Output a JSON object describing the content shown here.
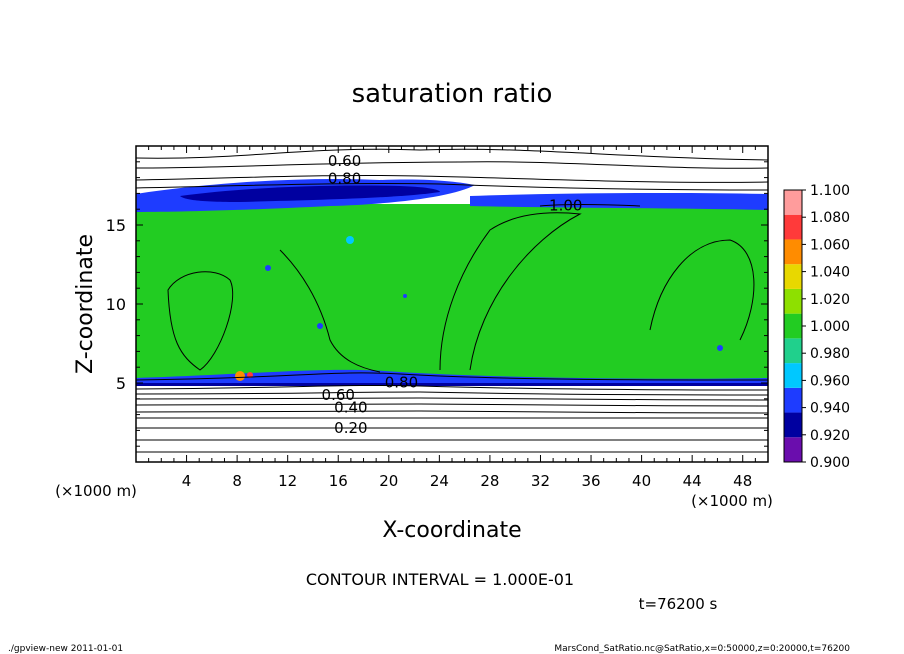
{
  "chart_data": {
    "type": "heatmap",
    "title": "saturation ratio",
    "xlabel": "X-coordinate",
    "ylabel": "Z-coordinate",
    "x_unit": "(×1000 m)",
    "y_unit": "(×1000 m)",
    "xlim": [
      0,
      50
    ],
    "ylim": [
      0,
      20
    ],
    "x_ticks": [
      4,
      8,
      12,
      16,
      20,
      24,
      28,
      32,
      36,
      40,
      44,
      48
    ],
    "y_ticks": [
      5,
      10,
      15
    ],
    "colorbar": {
      "levels": [
        "0.900",
        "0.920",
        "0.940",
        "0.960",
        "0.980",
        "1.000",
        "1.020",
        "1.040",
        "1.060",
        "1.080",
        "1.100"
      ],
      "colors": [
        "#6a0dad",
        "#0000a0",
        "#1e3cff",
        "#00c8ff",
        "#20d08c",
        "#22cc22",
        "#8ee000",
        "#e8d800",
        "#ff8c00",
        "#ff3a3a",
        "#ff9c9c"
      ]
    },
    "contour_labels": [
      {
        "text": "0.60",
        "x": 16.5,
        "y": 19.1
      },
      {
        "text": "0.80",
        "x": 16.5,
        "y": 18.0
      },
      {
        "text": "1.00",
        "x": 34.0,
        "y": 16.3
      },
      {
        "text": "0.80",
        "x": 21.0,
        "y": 5.1
      },
      {
        "text": "0.60",
        "x": 16.0,
        "y": 4.3
      },
      {
        "text": "0.40",
        "x": 17.0,
        "y": 3.5
      },
      {
        "text": "0.20",
        "x": 17.0,
        "y": 2.2
      }
    ],
    "contour_interval": "CONTOUR INTERVAL = 1.000E-01",
    "time_label": "t=76200 s"
  },
  "footer": {
    "left": "./gpview-new   2011-01-01",
    "right": "MarsCond_SatRatio.nc@SatRatio,x=0:50000,z=0:20000,t=76200"
  }
}
